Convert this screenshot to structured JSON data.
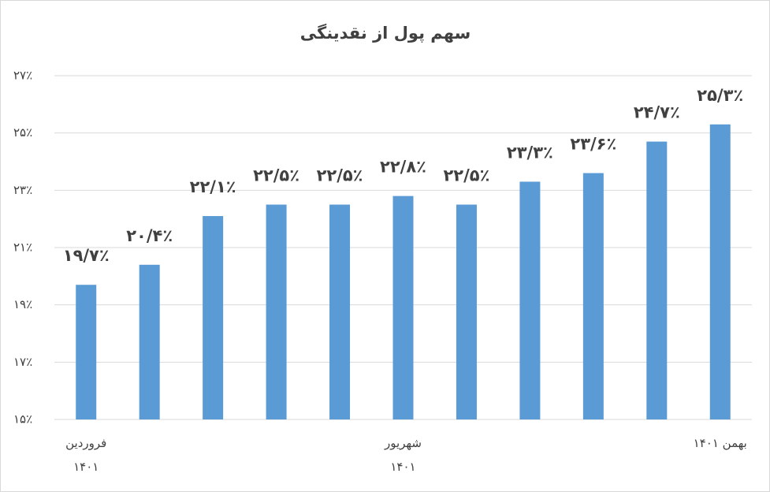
{
  "chart_data": {
    "type": "bar",
    "title": "سهم پول از نقدینگی",
    "categories": [
      "فروردین ۱۴۰۱",
      null,
      null,
      null,
      null,
      "شهریور ۱۴۰۱",
      null,
      null,
      null,
      null,
      "بهمن ۱۴۰۱"
    ],
    "values": [
      19.7,
      20.4,
      22.1,
      22.5,
      22.5,
      22.8,
      22.5,
      23.3,
      23.6,
      24.7,
      25.3
    ],
    "value_labels": [
      "۱۹/۷٪",
      "۲۰/۴٪",
      "۲۲/۱٪",
      "۲۲/۵٪",
      "۲۲/۵٪",
      "۲۲/۸٪",
      "۲۲/۵٪",
      "۲۳/۳٪",
      "۲۳/۶٪",
      "۲۴/۷٪",
      "۲۵/۳٪"
    ],
    "color": "#5b9bd5",
    "ylim": [
      15,
      27
    ],
    "yticks": [
      {
        "value": 15,
        "label": "۱۵٪"
      },
      {
        "value": 17,
        "label": "۱۷٪"
      },
      {
        "value": 19,
        "label": "۱۹٪"
      },
      {
        "value": 21,
        "label": "۲۱٪"
      },
      {
        "value": 23,
        "label": "۲۳٪"
      },
      {
        "value": 25,
        "label": "۲۵٪"
      },
      {
        "value": 27,
        "label": "۲۷٪"
      }
    ],
    "grid": true
  }
}
